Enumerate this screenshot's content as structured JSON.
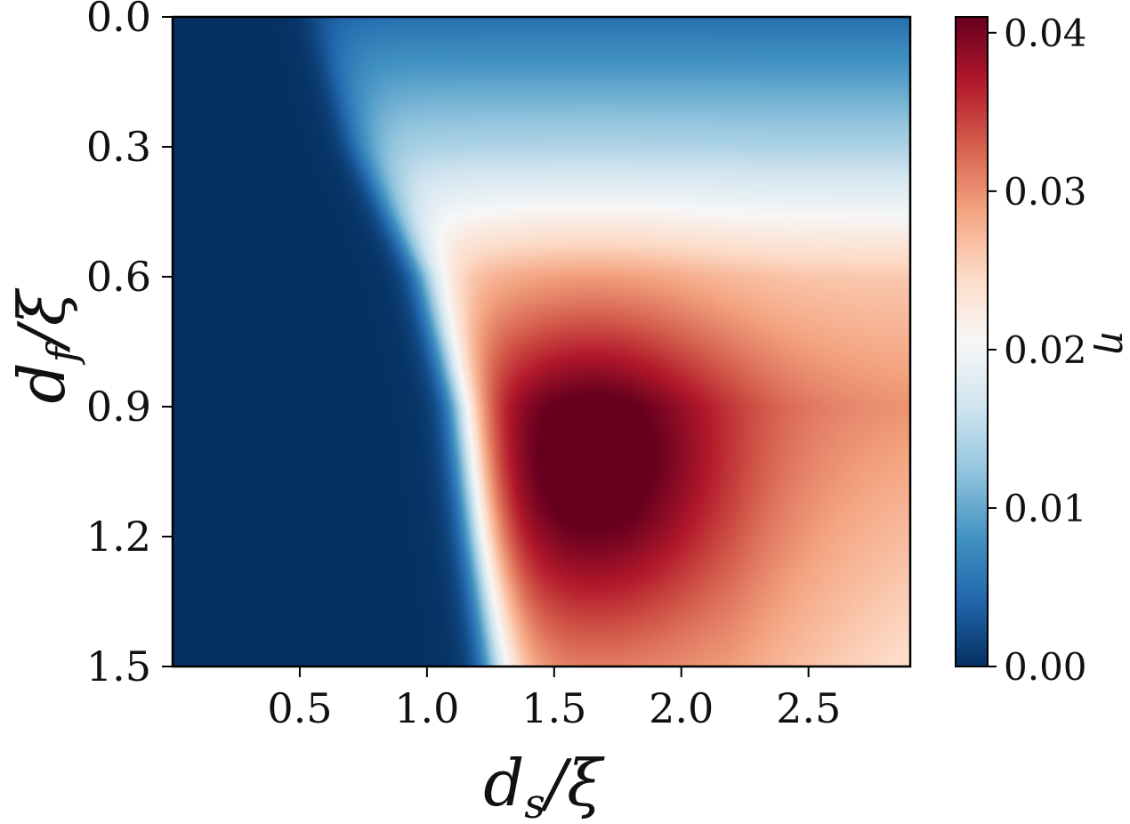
{
  "chart_data": {
    "type": "heatmap",
    "title": "",
    "xlabel_main": "d",
    "xlabel_sub": "s",
    "xlabel_denom": "/ξ",
    "ylabel_main": "d",
    "ylabel_sub": "f",
    "ylabel_denom": "/ξ",
    "x_range": [
      0.0,
      2.9
    ],
    "y_range": [
      0.0,
      1.5
    ],
    "y_inverted": true,
    "x_ticks": [
      0.5,
      1.0,
      1.5,
      2.0,
      2.5
    ],
    "x_tick_labels": [
      "0.5",
      "1.0",
      "1.5",
      "2.0",
      "2.5"
    ],
    "y_ticks": [
      0.0,
      0.3,
      0.6,
      0.9,
      1.2,
      1.5
    ],
    "y_tick_labels": [
      "0.0",
      "0.3",
      "0.6",
      "0.9",
      "1.2",
      "1.5"
    ],
    "colorbar": {
      "label": "η",
      "colormap": "RdBu_r",
      "range": [
        0.0,
        0.041
      ],
      "ticks": [
        0.0,
        0.01,
        0.02,
        0.03,
        0.04
      ],
      "tick_labels": [
        "0.00",
        "0.01",
        "0.02",
        "0.03",
        "0.04"
      ],
      "color_stops": [
        "#053061",
        "#2166ac",
        "#4393c3",
        "#92c5de",
        "#d1e5f0",
        "#f7f7f7",
        "#fddbc7",
        "#f4a582",
        "#d6604d",
        "#b2182b",
        "#67001f"
      ]
    },
    "field_description_points": {
      "boundary_ds_at_df": [
        [
          0.0,
          0.55
        ],
        [
          0.3,
          0.72
        ],
        [
          0.6,
          0.98
        ],
        [
          0.9,
          1.12
        ],
        [
          1.2,
          1.18
        ],
        [
          1.5,
          1.25
        ]
      ],
      "peak": {
        "ds": 1.65,
        "df": 1.05,
        "eta": 0.041
      },
      "values": [
        {
          "ds": 2.5,
          "df": 0.0,
          "eta": 0.005
        },
        {
          "ds": 2.5,
          "df": 0.3,
          "eta": 0.014
        },
        {
          "ds": 2.5,
          "df": 0.45,
          "eta": 0.02
        },
        {
          "ds": 2.5,
          "df": 0.6,
          "eta": 0.026
        },
        {
          "ds": 2.5,
          "df": 0.9,
          "eta": 0.031
        },
        {
          "ds": 2.5,
          "df": 1.5,
          "eta": 0.028
        },
        {
          "ds": 1.5,
          "df": 0.6,
          "eta": 0.03
        },
        {
          "ds": 1.65,
          "df": 1.05,
          "eta": 0.041
        },
        {
          "ds": 2.0,
          "df": 1.2,
          "eta": 0.037
        }
      ]
    }
  }
}
